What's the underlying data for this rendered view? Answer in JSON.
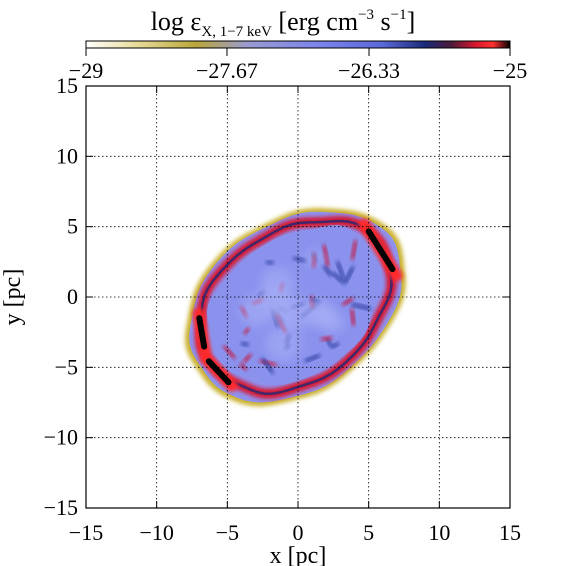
{
  "chart_data": {
    "type": "heatmap",
    "title": "",
    "xlabel": "x [pc]",
    "ylabel": "y [pc]",
    "xlim": [
      -15,
      15
    ],
    "ylim": [
      -15,
      15
    ],
    "x_ticks": [
      -15,
      -10,
      -5,
      0,
      5,
      10,
      15
    ],
    "y_ticks": [
      -15,
      -10,
      -5,
      0,
      5,
      10,
      15
    ],
    "x_tick_labels": [
      "−15",
      "−10",
      "−5",
      "0",
      "5",
      "10",
      "15"
    ],
    "y_tick_labels": [
      "−15",
      "−10",
      "−5",
      "0",
      "5",
      "10",
      "15"
    ],
    "grid": true,
    "colorbar": {
      "label_main": "log ε",
      "label_sub": "X, 1−7 keV",
      "label_unit_pre": " [erg cm",
      "label_sup1": "−3",
      "label_unit_mid": " s",
      "label_sup2": "−1",
      "label_unit_post": "]",
      "range": [
        -29,
        -25
      ],
      "ticks": [
        -29,
        -27.67,
        -26.33,
        -25
      ],
      "tick_labels": [
        "−29",
        "−27.67",
        "−26.33",
        "−25"
      ],
      "colors": [
        "#ffffff",
        "#c9b12e",
        "#8a8ff0",
        "#3f4fb0",
        "#1a1f4a",
        "#c8173a",
        "#ff2a2a",
        "#000000"
      ]
    },
    "remnant": {
      "center": [
        -0.2,
        -0.6
      ],
      "semi_axes": [
        8.0,
        5.8
      ],
      "rotation_deg": 35,
      "interior_level": -26.8,
      "shell_level": -25.4,
      "hotspot_levels": [
        -25.0,
        -25.1,
        -25.1
      ]
    }
  }
}
